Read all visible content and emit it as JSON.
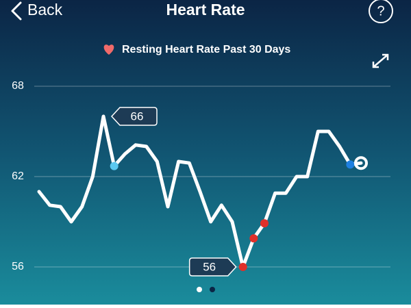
{
  "header": {
    "back": "Back",
    "title": "Heart Rate",
    "help": "?"
  },
  "chart_data": {
    "type": "line",
    "subtitle": "Resting Heart Rate Past 30 Days",
    "values": [
      61,
      60.1,
      60,
      59,
      60,
      62,
      66,
      62.7,
      63.5,
      64.1,
      64,
      63,
      60,
      63,
      62.9,
      61,
      59,
      60.1,
      59,
      56,
      57.9,
      58.9,
      60.9,
      60.9,
      62,
      62,
      65,
      65,
      64,
      62.8,
      62.9
    ],
    "marker_colors": [
      null,
      null,
      null,
      null,
      null,
      null,
      null,
      "#5bc8f0",
      null,
      null,
      null,
      null,
      null,
      null,
      null,
      null,
      null,
      null,
      null,
      "#e0302a",
      "#e0302a",
      "#e0302a",
      null,
      null,
      null,
      null,
      null,
      null,
      null,
      "#1e7fe0",
      null
    ],
    "color": "#ffffff",
    "ylim": [
      56,
      68
    ],
    "yticks": [
      56,
      62,
      68
    ],
    "grid": true
  }
}
